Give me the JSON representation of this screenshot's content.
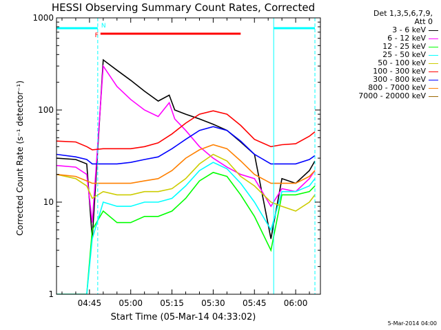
{
  "chart_data": {
    "type": "line",
    "title": "HESSI Observing Summary Count Rates, Corrected",
    "xlabel": "Start Time (05-Mar-14 04:33:02)",
    "ylabel": "Corrected Count Rate (s⁻¹ detector⁻¹)",
    "y_scale": "log",
    "ylim": [
      1,
      1000
    ],
    "xlim": [
      "04:33",
      "06:09"
    ],
    "x_ticks": [
      "04:45",
      "05:00",
      "05:15",
      "05:30",
      "05:45",
      "06:00"
    ],
    "y_ticks": [
      "1",
      "10",
      "100",
      "1000"
    ],
    "legend_header": [
      "Det 1,3,5,6,7,9,",
      "Att 0"
    ],
    "series": [
      {
        "name": "3 - 6 keV",
        "color": "#000000",
        "x": [
          "04:33",
          "04:40",
          "04:44",
          "04:46",
          "04:50",
          "04:55",
          "05:00",
          "05:05",
          "05:10",
          "05:14",
          "05:16",
          "05:20",
          "05:25",
          "05:30",
          "05:35",
          "05:40",
          "05:45",
          "05:51",
          "05:55",
          "06:00",
          "06:05",
          "06:07"
        ],
        "y": [
          30,
          29,
          26,
          4,
          350,
          270,
          210,
          160,
          125,
          145,
          100,
          90,
          80,
          70,
          60,
          45,
          33,
          4,
          18,
          16,
          22,
          28
        ]
      },
      {
        "name": "6 - 12 keV",
        "color": "#ff00ff",
        "x": [
          "04:33",
          "04:40",
          "04:44",
          "04:46",
          "04:50",
          "04:55",
          "05:00",
          "05:05",
          "05:10",
          "05:14",
          "05:16",
          "05:20",
          "05:25",
          "05:30",
          "05:35",
          "05:40",
          "05:45",
          "05:51",
          "05:55",
          "06:00",
          "06:05",
          "06:07"
        ],
        "y": [
          25,
          24,
          20,
          6,
          300,
          180,
          130,
          100,
          85,
          120,
          80,
          60,
          40,
          30,
          24,
          20,
          18,
          9,
          14,
          13,
          18,
          22
        ]
      },
      {
        "name": "12 - 25 keV",
        "color": "#00ff00",
        "x": [
          "04:33",
          "04:40",
          "04:44",
          "04:46",
          "04:50",
          "04:55",
          "05:00",
          "05:05",
          "05:10",
          "05:15",
          "05:20",
          "05:25",
          "05:30",
          "05:35",
          "05:40",
          "05:45",
          "05:51",
          "05:55",
          "06:00",
          "06:05",
          "06:07"
        ],
        "y": [
          1,
          1,
          1,
          5,
          8,
          6,
          6,
          7,
          7,
          8,
          11,
          17,
          21,
          19,
          12,
          7,
          3,
          12,
          12,
          13,
          15
        ]
      },
      {
        "name": "25 - 50 keV",
        "color": "#00ffff",
        "x": [
          "04:33",
          "04:40",
          "04:44",
          "04:46",
          "04:50",
          "04:55",
          "05:00",
          "05:05",
          "05:10",
          "05:15",
          "05:20",
          "05:25",
          "05:30",
          "05:35",
          "05:40",
          "05:45",
          "05:51",
          "05:55",
          "06:00",
          "06:05",
          "06:07"
        ],
        "y": [
          1,
          1,
          1,
          4,
          10,
          9,
          9,
          10,
          10,
          11,
          15,
          22,
          27,
          23,
          16,
          10,
          5,
          13,
          13,
          15,
          18
        ]
      },
      {
        "name": "50 - 100 keV",
        "color": "#cccc00",
        "x": [
          "04:33",
          "04:40",
          "04:44",
          "04:46",
          "04:50",
          "04:55",
          "05:00",
          "05:05",
          "05:10",
          "05:15",
          "05:20",
          "05:25",
          "05:30",
          "05:35",
          "05:40",
          "05:45",
          "05:51",
          "05:55",
          "06:00",
          "06:05",
          "06:07"
        ],
        "y": [
          20,
          18,
          15,
          11,
          13,
          12,
          12,
          13,
          13,
          14,
          18,
          26,
          33,
          28,
          19,
          15,
          10,
          9,
          8,
          10,
          12
        ]
      },
      {
        "name": "100 - 300 keV",
        "color": "#ff0000",
        "x": [
          "04:33",
          "04:40",
          "04:44",
          "04:46",
          "04:50",
          "04:55",
          "05:00",
          "05:05",
          "05:10",
          "05:15",
          "05:20",
          "05:25",
          "05:30",
          "05:35",
          "05:40",
          "05:45",
          "05:51",
          "05:55",
          "06:00",
          "06:05",
          "06:07"
        ],
        "y": [
          46,
          45,
          40,
          37,
          38,
          38,
          38,
          40,
          44,
          55,
          72,
          90,
          98,
          90,
          68,
          48,
          40,
          42,
          43,
          52,
          58
        ]
      },
      {
        "name": "300 - 800 keV",
        "color": "#0000ff",
        "x": [
          "04:33",
          "04:40",
          "04:44",
          "04:46",
          "04:50",
          "04:55",
          "05:00",
          "05:05",
          "05:10",
          "05:15",
          "05:20",
          "05:25",
          "05:30",
          "05:35",
          "05:40",
          "05:45",
          "05:51",
          "05:55",
          "06:00",
          "06:05",
          "06:07"
        ],
        "y": [
          33,
          31,
          29,
          26,
          26,
          26,
          27,
          29,
          31,
          38,
          48,
          60,
          66,
          60,
          46,
          33,
          26,
          26,
          26,
          29,
          32
        ]
      },
      {
        "name": "800 - 7000 keV",
        "color": "#ff8000",
        "x": [
          "04:33",
          "04:40",
          "04:44",
          "04:46",
          "04:50",
          "04:55",
          "05:00",
          "05:05",
          "05:10",
          "05:15",
          "05:20",
          "05:25",
          "05:30",
          "05:35",
          "05:40",
          "05:45",
          "05:51",
          "05:55",
          "06:00",
          "06:05",
          "06:07"
        ],
        "y": [
          20,
          19,
          17,
          16,
          16,
          16,
          16,
          17,
          18,
          22,
          30,
          37,
          42,
          38,
          28,
          20,
          16,
          16,
          16,
          19,
          22
        ]
      },
      {
        "name": "7000 - 20000 keV",
        "color": "#996600",
        "x": [],
        "y": []
      }
    ],
    "flags": [
      {
        "label": "",
        "color": "#00ffff",
        "x1": "04:33",
        "x2": "04:48"
      },
      {
        "label": "",
        "color": "#00ffff",
        "x1": "05:52",
        "x2": "06:07"
      },
      {
        "label": "N",
        "color": "#00ffff",
        "x1": "04:48",
        "x2": "04:48"
      },
      {
        "label": "F",
        "color": "#ff0000",
        "x1": "04:49",
        "x2": "05:40"
      }
    ],
    "vlines": [
      {
        "x": "04:48",
        "color": "#00ffff",
        "style": "dashed"
      },
      {
        "x": "05:52",
        "color": "#00ffff",
        "style": "solid"
      },
      {
        "x": "06:07",
        "color": "#00ffff",
        "style": "dashed"
      }
    ]
  },
  "footer": {
    "generated": "5-Mar-2014 04:00"
  }
}
